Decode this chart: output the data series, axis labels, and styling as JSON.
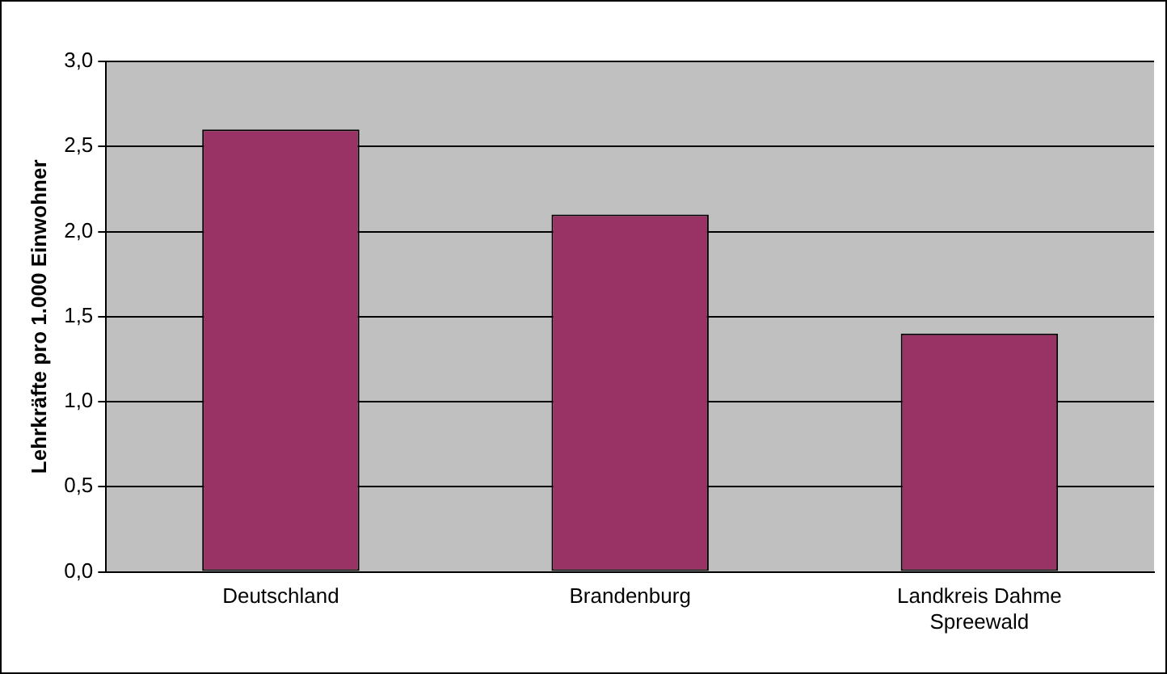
{
  "chart_data": {
    "type": "bar",
    "ylabel": "Lehrkräfte pro 1.000 Einwohner",
    "categories": [
      "Deutschland",
      "Brandenburg",
      "Landkreis Dahme Spreewald"
    ],
    "values": [
      2.6,
      2.1,
      1.4
    ],
    "color": "#993366",
    "ylim": [
      0,
      3
    ],
    "yticks": [
      {
        "value": 0,
        "label": "0,0"
      },
      {
        "value": 0.5,
        "label": "0,5"
      },
      {
        "value": 1,
        "label": "1,0"
      },
      {
        "value": 1.5,
        "label": "1,5"
      },
      {
        "value": 2,
        "label": "2,0"
      },
      {
        "value": 2.5,
        "label": "2,5"
      },
      {
        "value": 3,
        "label": "3,0"
      }
    ],
    "grid": "y",
    "legend": false
  }
}
